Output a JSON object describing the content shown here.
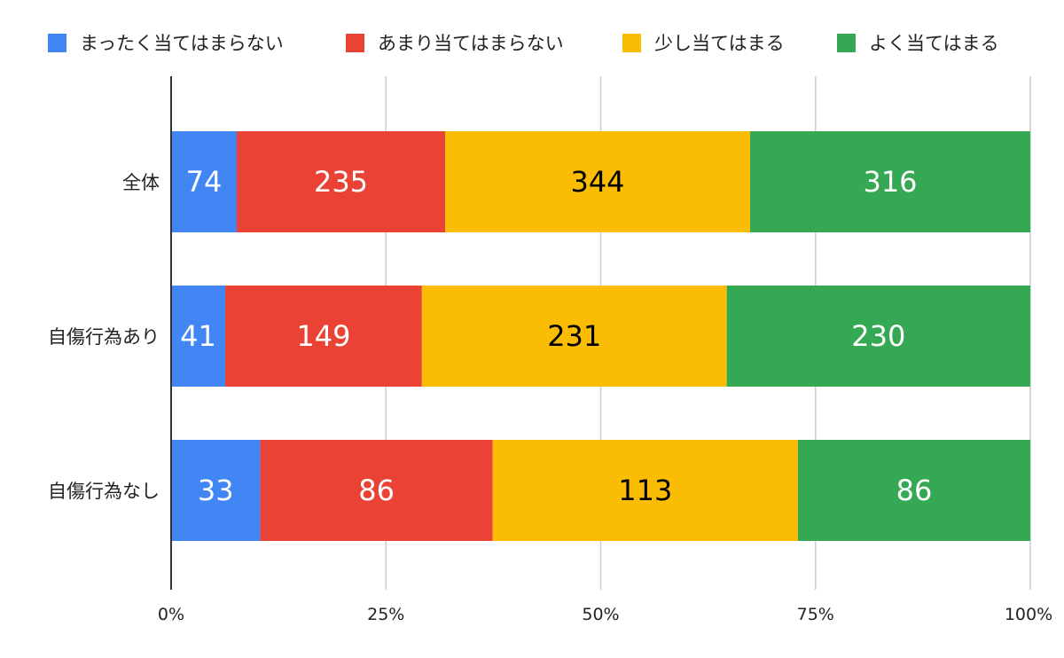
{
  "chart_data": {
    "type": "bar",
    "orientation": "horizontal",
    "stacked": "percent",
    "categories": [
      "全体",
      "自傷行為あり",
      "自傷行為なし"
    ],
    "series": [
      {
        "name": "まったく当てはまらない",
        "color": "#4285F4",
        "label_color": "#ffffff",
        "values": [
          74,
          41,
          33
        ]
      },
      {
        "name": "あまり当てはまらない",
        "color": "#EA4335",
        "label_color": "#ffffff",
        "values": [
          235,
          149,
          86
        ]
      },
      {
        "name": "少し当てはまる",
        "color": "#FBBC04",
        "label_color": "#000000",
        "values": [
          344,
          231,
          113
        ]
      },
      {
        "name": "よく当てはまる",
        "color": "#34A853",
        "label_color": "#ffffff",
        "values": [
          316,
          230,
          86
        ]
      }
    ],
    "x_ticks": [
      "0%",
      "25%",
      "50%",
      "75%",
      "100%"
    ],
    "xlim": [
      0,
      100
    ],
    "grid": true,
    "legend_position": "top"
  }
}
